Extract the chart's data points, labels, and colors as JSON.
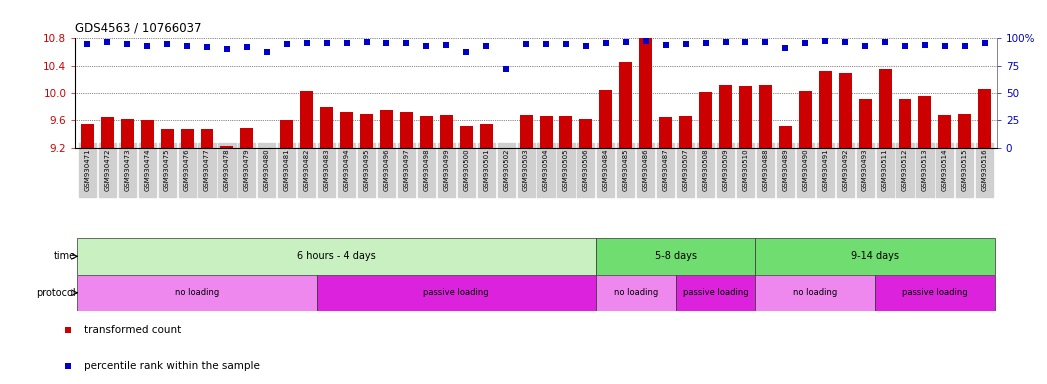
{
  "title": "GDS4563 / 10766037",
  "samples": [
    "GSM930471",
    "GSM930472",
    "GSM930473",
    "GSM930474",
    "GSM930475",
    "GSM930476",
    "GSM930477",
    "GSM930478",
    "GSM930479",
    "GSM930480",
    "GSM930481",
    "GSM930482",
    "GSM930483",
    "GSM930494",
    "GSM930495",
    "GSM930496",
    "GSM930497",
    "GSM930498",
    "GSM930499",
    "GSM930500",
    "GSM930501",
    "GSM930502",
    "GSM930503",
    "GSM930504",
    "GSM930505",
    "GSM930506",
    "GSM930484",
    "GSM930485",
    "GSM930486",
    "GSM930487",
    "GSM930507",
    "GSM930508",
    "GSM930509",
    "GSM930510",
    "GSM930488",
    "GSM930489",
    "GSM930490",
    "GSM930491",
    "GSM930492",
    "GSM930493",
    "GSM930511",
    "GSM930512",
    "GSM930513",
    "GSM930514",
    "GSM930515",
    "GSM930516"
  ],
  "bar_values": [
    9.55,
    9.65,
    9.62,
    9.6,
    9.47,
    9.48,
    9.48,
    9.22,
    9.49,
    9.18,
    9.61,
    10.03,
    9.8,
    9.72,
    9.7,
    9.75,
    9.73,
    9.67,
    9.68,
    9.52,
    9.55,
    9.18,
    9.68,
    9.67,
    9.67,
    9.62,
    10.04,
    10.45,
    10.85,
    9.65,
    9.67,
    10.01,
    10.12,
    10.1,
    10.12,
    9.52,
    10.03,
    10.32,
    10.3,
    9.92,
    10.35,
    9.92,
    9.96,
    9.68,
    9.7,
    10.06
  ],
  "percentile_values": [
    95,
    97,
    95,
    93,
    95,
    93,
    92,
    90,
    92,
    88,
    95,
    96,
    96,
    96,
    97,
    96,
    96,
    93,
    94,
    88,
    93,
    72,
    95,
    95,
    95,
    93,
    96,
    97,
    98,
    94,
    95,
    96,
    97,
    97,
    97,
    91,
    96,
    98,
    97,
    93,
    97,
    93,
    94,
    93,
    93,
    96
  ],
  "ylim_left": [
    9.2,
    10.8
  ],
  "ylim_right": [
    0,
    100
  ],
  "yticks_left": [
    9.2,
    9.6,
    10.0,
    10.4,
    10.8
  ],
  "yticks_right": [
    0,
    25,
    50,
    75,
    100
  ],
  "bar_color": "#cc0000",
  "dot_color": "#0000cc",
  "time_groups": [
    {
      "label": "6 hours - 4 days",
      "start": 0,
      "end": 26,
      "color": "#c8f0c0"
    },
    {
      "label": "5-8 days",
      "start": 26,
      "end": 34,
      "color": "#70dd70"
    },
    {
      "label": "9-14 days",
      "start": 34,
      "end": 46,
      "color": "#70dd70"
    }
  ],
  "protocol_groups": [
    {
      "label": "no loading",
      "start": 0,
      "end": 12,
      "color": "#ee88ee"
    },
    {
      "label": "passive loading",
      "start": 12,
      "end": 26,
      "color": "#dd22dd"
    },
    {
      "label": "no loading",
      "start": 26,
      "end": 30,
      "color": "#ee88ee"
    },
    {
      "label": "passive loading",
      "start": 30,
      "end": 34,
      "color": "#dd22dd"
    },
    {
      "label": "no loading",
      "start": 34,
      "end": 40,
      "color": "#ee88ee"
    },
    {
      "label": "passive loading",
      "start": 40,
      "end": 46,
      "color": "#dd22dd"
    }
  ],
  "legend_items": [
    {
      "label": "transformed count",
      "color": "#cc0000"
    },
    {
      "label": "percentile rank within the sample",
      "color": "#0000cc"
    }
  ]
}
